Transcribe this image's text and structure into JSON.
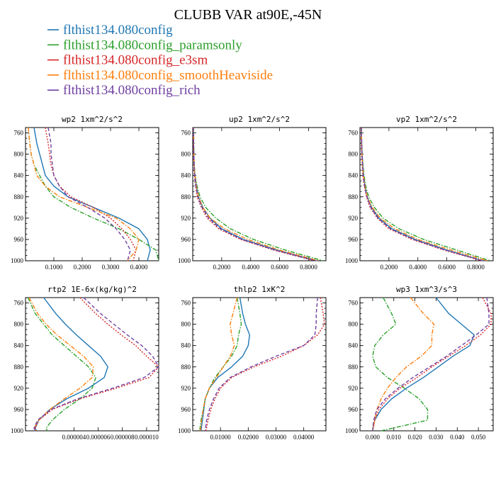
{
  "figure": {
    "title": "CLUBB VAR at90E,-45N",
    "legend": [
      {
        "label": "flthist134.080config",
        "color": "#1f77b4",
        "dash": "solid"
      },
      {
        "label": "flthist134.080config_paramsonly",
        "color": "#2ca02c",
        "dash": "dashdot"
      },
      {
        "label": "flthist134.080config_e3sm",
        "color": "#d62728",
        "dash": "dot"
      },
      {
        "label": "flthist134.080config_smoothHeaviside",
        "color": "#ff7f0e",
        "dash": "dashdot"
      },
      {
        "label": "flthist134.080config_rich",
        "color": "#7040a0",
        "dash": "dash"
      }
    ]
  },
  "chart_data": [
    {
      "type": "line",
      "title": "wp2  1xm^2/s^2",
      "xlim": [
        0,
        0.47
      ],
      "ylim": [
        1000,
        750
      ],
      "xticks": [
        0.1,
        0.2,
        0.3,
        0.4
      ],
      "xtick_labels": [
        "0.1000",
        "0.2000",
        "0.3000",
        "0.4000"
      ],
      "yticks": [
        760,
        800,
        840,
        880,
        920,
        960,
        1000
      ],
      "ytick_labels": [
        "760",
        "800",
        "840",
        "880",
        "920",
        "960",
        "1000"
      ],
      "y": [
        750,
        780,
        800,
        820,
        840,
        860,
        880,
        900,
        920,
        940,
        960,
        980,
        1000
      ],
      "series": [
        {
          "values": [
            0.03,
            0.04,
            0.05,
            0.06,
            0.07,
            0.1,
            0.15,
            0.24,
            0.33,
            0.4,
            0.43,
            0.44,
            0.43
          ]
        },
        {
          "values": [
            0.01,
            0.015,
            0.02,
            0.03,
            0.05,
            0.07,
            0.1,
            0.16,
            0.24,
            0.33,
            0.4,
            0.46,
            0.47
          ]
        },
        {
          "values": [
            0.07,
            0.08,
            0.085,
            0.09,
            0.1,
            0.12,
            0.16,
            0.24,
            0.3,
            0.34,
            0.37,
            0.39,
            0.38
          ]
        },
        {
          "values": [
            0.01,
            0.015,
            0.02,
            0.03,
            0.04,
            0.07,
            0.12,
            0.22,
            0.32,
            0.37,
            0.4,
            0.39,
            0.36
          ]
        },
        {
          "values": [
            0.08,
            0.09,
            0.09,
            0.095,
            0.1,
            0.12,
            0.15,
            0.22,
            0.28,
            0.32,
            0.35,
            0.37,
            0.36
          ]
        }
      ]
    },
    {
      "type": "line",
      "title": "up2  1xm^2/s^2",
      "xlim": [
        0,
        0.92
      ],
      "ylim": [
        1000,
        750
      ],
      "xticks": [
        0.2,
        0.4,
        0.6,
        0.8
      ],
      "xtick_labels": [
        "0.2000",
        "0.4000",
        "0.6000",
        "0.8000"
      ],
      "yticks": [
        760,
        800,
        840,
        880,
        920,
        960,
        1000
      ],
      "ytick_labels": [
        "760",
        "800",
        "840",
        "880",
        "920",
        "960",
        "1000"
      ],
      "y": [
        750,
        780,
        800,
        820,
        840,
        860,
        880,
        900,
        920,
        940,
        960,
        980,
        1000
      ],
      "series": [
        {
          "values": [
            0.005,
            0.006,
            0.008,
            0.01,
            0.015,
            0.025,
            0.04,
            0.07,
            0.12,
            0.2,
            0.35,
            0.58,
            0.86
          ]
        },
        {
          "values": [
            0.005,
            0.006,
            0.008,
            0.011,
            0.016,
            0.03,
            0.05,
            0.09,
            0.16,
            0.26,
            0.42,
            0.64,
            0.9
          ]
        },
        {
          "values": [
            0.004,
            0.005,
            0.006,
            0.008,
            0.012,
            0.02,
            0.03,
            0.06,
            0.1,
            0.18,
            0.33,
            0.56,
            0.84
          ]
        },
        {
          "values": [
            0.005,
            0.006,
            0.008,
            0.01,
            0.015,
            0.025,
            0.04,
            0.07,
            0.12,
            0.22,
            0.38,
            0.6,
            0.87
          ]
        },
        {
          "values": [
            0.005,
            0.006,
            0.007,
            0.009,
            0.013,
            0.022,
            0.035,
            0.065,
            0.11,
            0.19,
            0.34,
            0.57,
            0.85
          ]
        }
      ]
    },
    {
      "type": "line",
      "title": "vp2  1xm^2/s^2",
      "xlim": [
        0,
        0.92
      ],
      "ylim": [
        1000,
        750
      ],
      "xticks": [
        0.2,
        0.4,
        0.6,
        0.8
      ],
      "xtick_labels": [
        "0.2000",
        "0.4000",
        "0.6000",
        "0.8000"
      ],
      "yticks": [
        760,
        800,
        840,
        880,
        920,
        960,
        1000
      ],
      "ytick_labels": [
        "760",
        "800",
        "840",
        "880",
        "920",
        "960",
        "1000"
      ],
      "y": [
        750,
        780,
        800,
        820,
        840,
        860,
        880,
        900,
        920,
        940,
        960,
        980,
        1000
      ],
      "series": [
        {
          "values": [
            0.01,
            0.012,
            0.015,
            0.02,
            0.025,
            0.035,
            0.05,
            0.08,
            0.13,
            0.22,
            0.38,
            0.6,
            0.85
          ]
        },
        {
          "values": [
            0.01,
            0.012,
            0.015,
            0.02,
            0.028,
            0.04,
            0.06,
            0.1,
            0.16,
            0.27,
            0.44,
            0.67,
            0.9
          ]
        },
        {
          "values": [
            0.008,
            0.01,
            0.012,
            0.016,
            0.02,
            0.03,
            0.045,
            0.07,
            0.12,
            0.2,
            0.36,
            0.58,
            0.84
          ]
        },
        {
          "values": [
            0.01,
            0.012,
            0.014,
            0.018,
            0.024,
            0.035,
            0.05,
            0.085,
            0.14,
            0.24,
            0.4,
            0.63,
            0.88
          ]
        },
        {
          "values": [
            0.01,
            0.012,
            0.014,
            0.018,
            0.022,
            0.032,
            0.048,
            0.075,
            0.125,
            0.21,
            0.37,
            0.59,
            0.85
          ]
        }
      ]
    },
    {
      "type": "line",
      "title": "rtp2  1E-6x(kg/kg)^2",
      "xlim": [
        0,
        1.1e-05
      ],
      "ylim": [
        1000,
        750
      ],
      "xticks": [
        4e-06,
        6e-06,
        8e-06,
        1e-05
      ],
      "xtick_labels": [
        "0.000004",
        "0.000006",
        "0.000008",
        "0.000010"
      ],
      "yticks": [
        760,
        800,
        840,
        880,
        920,
        960,
        1000
      ],
      "ytick_labels": [
        "760",
        "800",
        "840",
        "880",
        "920",
        "960",
        "1000"
      ],
      "y": [
        750,
        780,
        800,
        820,
        840,
        860,
        880,
        900,
        920,
        940,
        960,
        980,
        995,
        1000
      ],
      "series": [
        {
          "values": [
            1.5e-06,
            2.5e-06,
            3.3e-06,
            4.2e-06,
            5.2e-06,
            6.2e-06,
            6.8e-06,
            6.5e-06,
            5.2e-06,
            3.4e-06,
            2e-06,
            1.1e-06,
            8e-07,
            9e-07
          ]
        },
        {
          "values": [
            2e-07,
            8e-07,
            1.5e-06,
            2.2e-06,
            3.2e-06,
            4.2e-06,
            5.2e-06,
            5.8e-06,
            5.5e-06,
            4.5e-06,
            3.2e-06,
            2.2e-06,
            1.7e-06,
            1.8e-06
          ]
        },
        {
          "values": [
            4.5e-06,
            5.8e-06,
            6.8e-06,
            7.9e-06,
            9.1e-06,
            1e-05,
            1.1e-05,
            1.02e-05,
            7.5e-06,
            4.5e-06,
            2.2e-06,
            1.1e-06,
            8e-07,
            9e-07
          ]
        },
        {
          "values": [
            3e-07,
            1e-06,
            1.7e-06,
            2.6e-06,
            3.7e-06,
            4.8e-06,
            5.6e-06,
            5.5e-06,
            4.5e-06,
            3.2e-06,
            2e-06,
            1.1e-06,
            7e-07,
            8e-07
          ]
        },
        {
          "values": [
            4.8e-06,
            6.2e-06,
            7.3e-06,
            8.4e-06,
            9.6e-06,
            1.05e-05,
            1.1e-05,
            9.8e-06,
            7.2e-06,
            4.3e-06,
            2.1e-06,
            1e-06,
            7e-07,
            8e-07
          ]
        }
      ]
    },
    {
      "type": "line",
      "title": "thlp2  1xK^2",
      "xlim": [
        0,
        0.048
      ],
      "ylim": [
        1000,
        750
      ],
      "xticks": [
        0.01,
        0.02,
        0.03,
        0.04
      ],
      "xtick_labels": [
        "0.01000",
        "0.02000",
        "0.03000",
        "0.04000"
      ],
      "yticks": [
        760,
        800,
        840,
        880,
        920,
        960,
        1000
      ],
      "ytick_labels": [
        "760",
        "800",
        "840",
        "880",
        "920",
        "960",
        "1000"
      ],
      "y": [
        750,
        780,
        800,
        820,
        840,
        860,
        880,
        900,
        920,
        940,
        960,
        980,
        1000
      ],
      "series": [
        {
          "values": [
            0.017,
            0.018,
            0.019,
            0.0205,
            0.02,
            0.018,
            0.014,
            0.009,
            0.006,
            0.0045,
            0.004,
            0.0035,
            0.003
          ]
        },
        {
          "values": [
            0.016,
            0.017,
            0.0175,
            0.0165,
            0.016,
            0.014,
            0.011,
            0.008,
            0.006,
            0.0045,
            0.0038,
            0.003,
            0.0025
          ]
        },
        {
          "values": [
            0.046,
            0.047,
            0.0475,
            0.045,
            0.04,
            0.032,
            0.022,
            0.014,
            0.01,
            0.008,
            0.0065,
            0.0055,
            0.0048
          ]
        },
        {
          "values": [
            0.016,
            0.0145,
            0.0135,
            0.014,
            0.015,
            0.0135,
            0.011,
            0.0085,
            0.006,
            0.0045,
            0.0038,
            0.0032,
            0.0027
          ]
        },
        {
          "values": [
            0.045,
            0.0445,
            0.0445,
            0.044,
            0.04,
            0.03,
            0.021,
            0.0135,
            0.0095,
            0.0075,
            0.006,
            0.005,
            0.0045
          ]
        }
      ]
    },
    {
      "type": "line",
      "title": "wp3  1xm^3/s^3",
      "xlim": [
        -0.006,
        0.057
      ],
      "ylim": [
        1000,
        750
      ],
      "xticks": [
        0.0,
        0.01,
        0.02,
        0.03,
        0.04,
        0.05
      ],
      "xtick_labels": [
        "0.000",
        "0.010",
        "0.020",
        "0.030",
        "0.040",
        "0.050"
      ],
      "yticks": [
        760,
        800,
        840,
        880,
        920,
        960,
        1000
      ],
      "ytick_labels": [
        "760",
        "800",
        "840",
        "880",
        "920",
        "960",
        "1000"
      ],
      "y": [
        750,
        780,
        800,
        820,
        840,
        860,
        880,
        900,
        920,
        940,
        960,
        980,
        1000
      ],
      "series": [
        {
          "values": [
            0.03,
            0.036,
            0.042,
            0.048,
            0.046,
            0.038,
            0.031,
            0.024,
            0.016,
            0.009,
            0.004,
            0.001,
            0.0
          ]
        },
        {
          "values": [
            0.005,
            0.009,
            0.011,
            0.005,
            0.001,
            0.0,
            0.0015,
            0.007,
            0.015,
            0.022,
            0.026,
            0.026,
            0.004
          ]
        },
        {
          "values": [
            0.052,
            0.056,
            0.056,
            0.051,
            0.044,
            0.036,
            0.028,
            0.021,
            0.013,
            0.007,
            0.003,
            0.001,
            0.0
          ]
        },
        {
          "values": [
            0.018,
            0.024,
            0.029,
            0.028,
            0.028,
            0.023,
            0.016,
            0.011,
            0.007,
            0.004,
            0.002,
            0.001,
            0.0
          ]
        },
        {
          "values": [
            0.054,
            0.055,
            0.055,
            0.049,
            0.042,
            0.035,
            0.027,
            0.019,
            0.012,
            0.006,
            0.002,
            0.0005,
            0.0
          ]
        }
      ]
    }
  ]
}
